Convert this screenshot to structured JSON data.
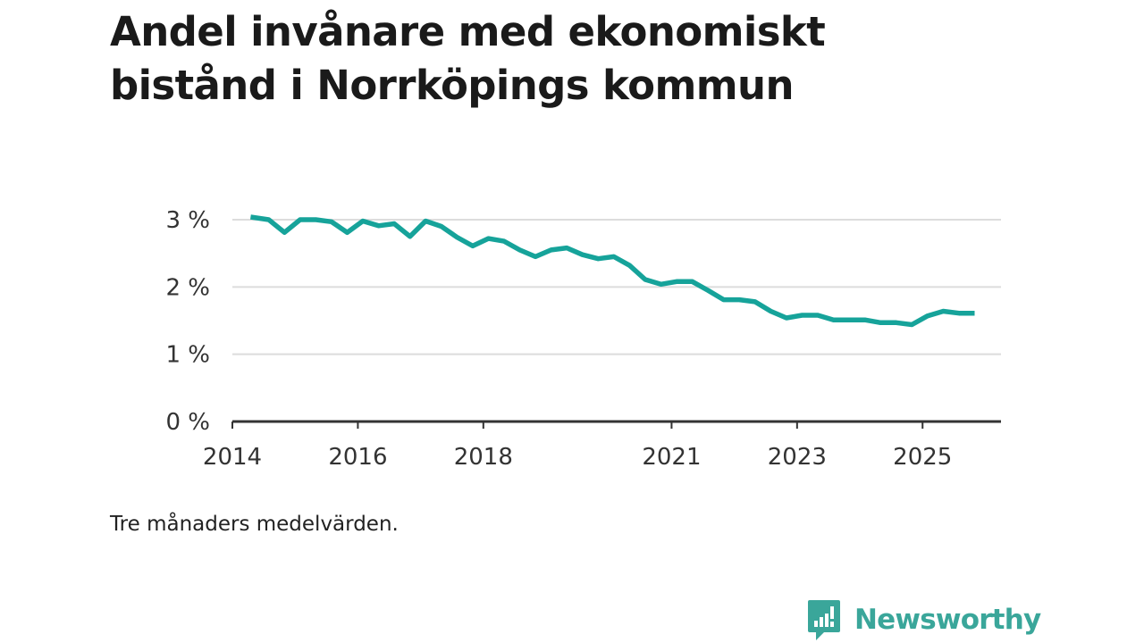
{
  "title": {
    "line1": "Andel invånare med ekonomiskt",
    "line2": "bistånd i Norrköpings kommun"
  },
  "note": "Tre månaders medelvärden.",
  "brand": {
    "name": "Newsworthy",
    "icon": "newsworthy-logo-icon",
    "color": "#3aa69a"
  },
  "colors": {
    "line": "#16a39a",
    "grid": "#dcdcdc",
    "axis": "#333333"
  },
  "chart_data": {
    "type": "line",
    "title": "Andel invånare med ekonomiskt bistånd i Norrköpings kommun",
    "xlabel": "",
    "ylabel": "",
    "ylim": [
      0,
      3
    ],
    "xlim": [
      2014.0,
      2026.25
    ],
    "y_ticks": [
      {
        "value": 0,
        "label": "0 %"
      },
      {
        "value": 1,
        "label": "1 %"
      },
      {
        "value": 2,
        "label": "2 %"
      },
      {
        "value": 3,
        "label": "3 %"
      }
    ],
    "x_ticks": [
      {
        "value": 2014,
        "label": "2014"
      },
      {
        "value": 2016,
        "label": "2016"
      },
      {
        "value": 2018,
        "label": "2018"
      },
      {
        "value": 2021,
        "label": "2021"
      },
      {
        "value": 2023,
        "label": "2023"
      },
      {
        "value": 2025,
        "label": "2025"
      }
    ],
    "grid": true,
    "series": [
      {
        "name": "Andel invånare med ekonomiskt bistånd",
        "x": [
          2014.29,
          2014.58,
          2014.83,
          2015.08,
          2015.33,
          2015.58,
          2015.83,
          2016.08,
          2016.33,
          2016.58,
          2016.83,
          2017.08,
          2017.33,
          2017.58,
          2017.83,
          2018.08,
          2018.33,
          2018.58,
          2018.83,
          2019.08,
          2019.33,
          2019.58,
          2019.83,
          2020.08,
          2020.33,
          2020.58,
          2020.83,
          2021.08,
          2021.33,
          2021.58,
          2021.83,
          2022.08,
          2022.33,
          2022.58,
          2022.83,
          2023.08,
          2023.33,
          2023.58,
          2023.83,
          2024.08,
          2024.33,
          2024.58,
          2024.83,
          2025.08,
          2025.33,
          2025.58,
          2025.83
        ],
        "values": [
          3.04,
          3.0,
          2.81,
          3.0,
          3.0,
          2.97,
          2.81,
          2.98,
          2.91,
          2.94,
          2.75,
          2.98,
          2.9,
          2.74,
          2.61,
          2.72,
          2.68,
          2.55,
          2.45,
          2.55,
          2.58,
          2.48,
          2.42,
          2.45,
          2.32,
          2.11,
          2.04,
          2.08,
          2.08,
          1.95,
          1.81,
          1.81,
          1.78,
          1.64,
          1.54,
          1.58,
          1.58,
          1.51,
          1.51,
          1.51,
          1.47,
          1.47,
          1.44,
          1.57,
          1.64,
          1.61,
          1.61
        ]
      }
    ]
  }
}
